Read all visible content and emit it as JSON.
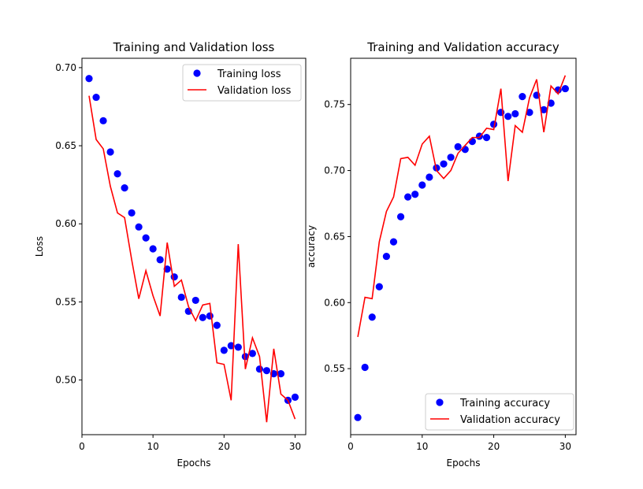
{
  "chart_data": [
    {
      "type": "line",
      "title": "Training and Validation loss",
      "xlabel": "Epochs",
      "ylabel": "Loss",
      "xlim": [
        0,
        31.5
      ],
      "ylim": [
        0.465,
        0.706
      ],
      "xticks": [
        0,
        10,
        20,
        30
      ],
      "yticks": [
        0.5,
        0.55,
        0.6,
        0.65,
        0.7
      ],
      "ytick_labels": [
        "0.50",
        "0.55",
        "0.60",
        "0.65",
        "0.70"
      ],
      "grid": false,
      "legend_position": "top-right",
      "x": [
        1,
        2,
        3,
        4,
        5,
        6,
        7,
        8,
        9,
        10,
        11,
        12,
        13,
        14,
        15,
        16,
        17,
        18,
        19,
        20,
        21,
        22,
        23,
        24,
        25,
        26,
        27,
        28,
        29,
        30
      ],
      "series": [
        {
          "name": "Training loss",
          "style": "points",
          "color": "#0000ff",
          "values": [
            0.693,
            0.681,
            0.666,
            0.646,
            0.632,
            0.623,
            0.607,
            0.598,
            0.591,
            0.584,
            0.577,
            0.571,
            0.566,
            0.553,
            0.544,
            0.551,
            0.54,
            0.541,
            0.535,
            0.519,
            0.522,
            0.521,
            0.515,
            0.517,
            0.507,
            0.506,
            0.504,
            0.504,
            0.487,
            0.489
          ]
        },
        {
          "name": "Validation loss",
          "style": "line",
          "color": "#ff0000",
          "values": [
            0.682,
            0.654,
            0.648,
            0.624,
            0.607,
            0.604,
            0.577,
            0.552,
            0.57,
            0.554,
            0.541,
            0.588,
            0.56,
            0.564,
            0.547,
            0.538,
            0.548,
            0.549,
            0.511,
            0.51,
            0.487,
            0.587,
            0.507,
            0.527,
            0.515,
            0.473,
            0.52,
            0.491,
            0.487,
            0.475
          ]
        }
      ]
    },
    {
      "type": "line",
      "title": "Training and Validation accuracy",
      "xlabel": "Epochs",
      "ylabel": "accuracy",
      "xlim": [
        0,
        31.5
      ],
      "ylim": [
        0.5,
        0.785
      ],
      "xticks": [
        0,
        10,
        20,
        30
      ],
      "yticks": [
        0.55,
        0.6,
        0.65,
        0.7,
        0.75
      ],
      "ytick_labels": [
        "0.55",
        "0.60",
        "0.65",
        "0.70",
        "0.75"
      ],
      "grid": false,
      "legend_position": "bottom-right",
      "x": [
        1,
        2,
        3,
        4,
        5,
        6,
        7,
        8,
        9,
        10,
        11,
        12,
        13,
        14,
        15,
        16,
        17,
        18,
        19,
        20,
        21,
        22,
        23,
        24,
        25,
        26,
        27,
        28,
        29,
        30
      ],
      "series": [
        {
          "name": "Training accuracy",
          "style": "points",
          "color": "#0000ff",
          "values": [
            0.513,
            0.551,
            0.589,
            0.612,
            0.635,
            0.646,
            0.665,
            0.68,
            0.682,
            0.689,
            0.695,
            0.702,
            0.705,
            0.71,
            0.718,
            0.716,
            0.722,
            0.726,
            0.725,
            0.735,
            0.744,
            0.741,
            0.743,
            0.756,
            0.744,
            0.757,
            0.746,
            0.751,
            0.761,
            0.762
          ]
        },
        {
          "name": "Validation accuracy",
          "style": "line",
          "color": "#ff0000",
          "values": [
            0.574,
            0.604,
            0.603,
            0.646,
            0.669,
            0.68,
            0.709,
            0.71,
            0.704,
            0.72,
            0.726,
            0.7,
            0.694,
            0.7,
            0.713,
            0.719,
            0.725,
            0.725,
            0.732,
            0.731,
            0.762,
            0.692,
            0.734,
            0.729,
            0.755,
            0.769,
            0.729,
            0.764,
            0.758,
            0.772
          ]
        }
      ]
    }
  ]
}
